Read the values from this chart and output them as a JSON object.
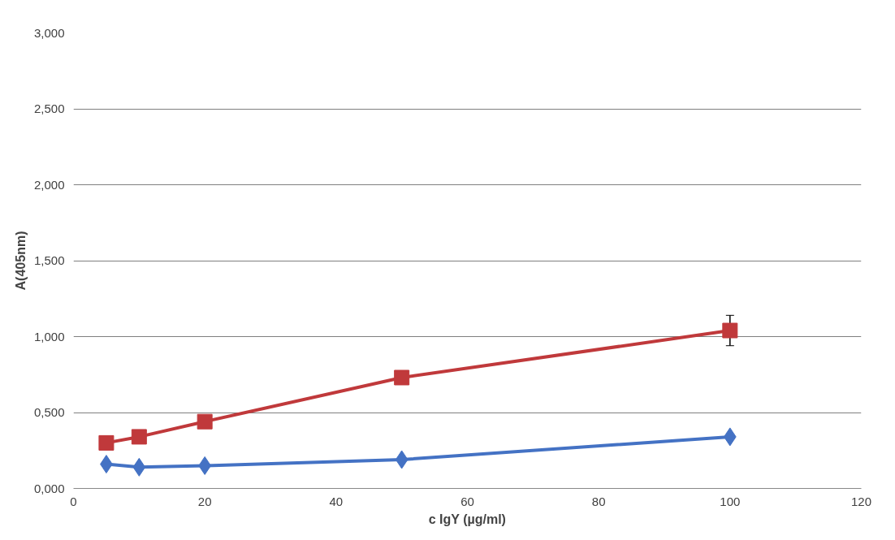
{
  "chart_data": {
    "type": "line",
    "xlabel": "c IgY (µg/ml)",
    "ylabel": "A(405nm)",
    "x": [
      5,
      10,
      20,
      50,
      100
    ],
    "series": [
      {
        "color": "#4472c4",
        "marker": "diamond",
        "values": [
          0.16,
          0.14,
          0.15,
          0.19,
          0.34
        ]
      },
      {
        "color": "#c0393b",
        "marker": "square",
        "values": [
          0.3,
          0.34,
          0.44,
          0.73,
          1.04
        ],
        "errors": [
          null,
          null,
          null,
          null,
          0.1
        ]
      }
    ],
    "xlim": [
      0,
      120
    ],
    "xticks": [
      0,
      20,
      40,
      60,
      80,
      100,
      120
    ],
    "ylim": [
      0,
      3
    ],
    "yticks": [
      {
        "value": 0,
        "label": "0,000"
      },
      {
        "value": 0.5,
        "label": "0,500"
      },
      {
        "value": 1,
        "label": "1,000"
      },
      {
        "value": 1.5,
        "label": "1,500"
      },
      {
        "value": 2,
        "label": "2,000"
      },
      {
        "value": 2.5,
        "label": "2,500"
      },
      {
        "value": 3,
        "label": "3,000"
      }
    ],
    "grid": "y"
  }
}
